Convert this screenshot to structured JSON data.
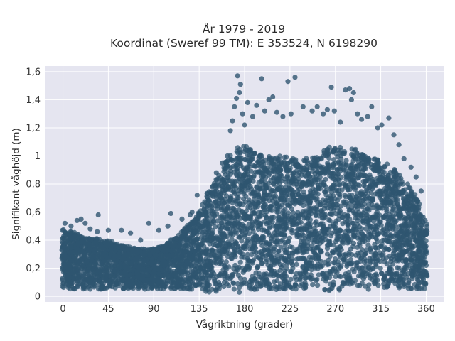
{
  "chart_data": {
    "type": "scatter",
    "title": "År 1979 - 2019",
    "subtitle": "Koordinat (Sweref 99 TM): E 353524, N 6198290",
    "xlabel": "Vågriktning (grader)",
    "ylabel": "Signifikant våghöjd (m)",
    "xlim": [
      -18,
      378
    ],
    "ylim": [
      -0.04,
      1.64
    ],
    "x_ticks": [
      0,
      45,
      90,
      135,
      180,
      225,
      270,
      315,
      360
    ],
    "x_tick_labels": [
      "0",
      "45",
      "90",
      "135",
      "180",
      "225",
      "270",
      "315",
      "360"
    ],
    "y_ticks": [
      0,
      0.2,
      0.4,
      0.6,
      0.8,
      1.0,
      1.2,
      1.4,
      1.6
    ],
    "y_tick_labels": [
      "0",
      "0,2",
      "0,4",
      "0,6",
      "0,8",
      "1",
      "1,2",
      "1,4",
      "1,6"
    ],
    "grid": true,
    "marker_color": "#2f5570",
    "plot_background": "#e5e5f0",
    "envelope": {
      "direction": [
        0,
        10,
        20,
        30,
        45,
        60,
        75,
        90,
        100,
        110,
        120,
        130,
        135,
        140,
        150,
        160,
        170,
        180,
        190,
        200,
        210,
        220,
        230,
        240,
        250,
        260,
        270,
        280,
        290,
        300,
        310,
        320,
        330,
        340,
        350,
        360
      ],
      "height_low": [
        0.05,
        0.05,
        0.05,
        0.05,
        0.05,
        0.05,
        0.05,
        0.05,
        0.05,
        0.05,
        0.05,
        0.05,
        0.04,
        0.03,
        0.02,
        0.02,
        0.02,
        0.03,
        0.04,
        0.04,
        0.04,
        0.05,
        0.05,
        0.05,
        0.05,
        0.04,
        0.04,
        0.05,
        0.05,
        0.05,
        0.05,
        0.05,
        0.05,
        0.05,
        0.05,
        0.05
      ],
      "height_high": [
        0.48,
        0.46,
        0.42,
        0.42,
        0.4,
        0.36,
        0.34,
        0.34,
        0.36,
        0.42,
        0.48,
        0.55,
        0.62,
        0.7,
        0.82,
        0.95,
        1.05,
        1.08,
        1.02,
        1.0,
        1.0,
        1.0,
        0.98,
        0.98,
        1.0,
        1.05,
        1.08,
        1.05,
        1.05,
        1.0,
        0.98,
        0.95,
        0.9,
        0.82,
        0.72,
        0.52
      ]
    },
    "outliers": [
      {
        "x": 2,
        "y": 0.52
      },
      {
        "x": 8,
        "y": 0.5
      },
      {
        "x": 14,
        "y": 0.54
      },
      {
        "x": 18,
        "y": 0.55
      },
      {
        "x": 22,
        "y": 0.52
      },
      {
        "x": 27,
        "y": 0.48
      },
      {
        "x": 34,
        "y": 0.46
      },
      {
        "x": 35,
        "y": 0.58
      },
      {
        "x": 45,
        "y": 0.47
      },
      {
        "x": 58,
        "y": 0.47
      },
      {
        "x": 67,
        "y": 0.45
      },
      {
        "x": 77,
        "y": 0.4
      },
      {
        "x": 85,
        "y": 0.52
      },
      {
        "x": 95,
        "y": 0.47
      },
      {
        "x": 104,
        "y": 0.5
      },
      {
        "x": 107,
        "y": 0.59
      },
      {
        "x": 118,
        "y": 0.55
      },
      {
        "x": 126,
        "y": 0.58
      },
      {
        "x": 128,
        "y": 0.6
      },
      {
        "x": 133,
        "y": 0.72
      },
      {
        "x": 148,
        "y": 0.78
      },
      {
        "x": 152,
        "y": 0.88
      },
      {
        "x": 158,
        "y": 0.95
      },
      {
        "x": 163,
        "y": 1.0
      },
      {
        "x": 166,
        "y": 1.18
      },
      {
        "x": 168,
        "y": 1.25
      },
      {
        "x": 170,
        "y": 1.35
      },
      {
        "x": 172,
        "y": 1.41
      },
      {
        "x": 173,
        "y": 1.57
      },
      {
        "x": 175,
        "y": 1.45
      },
      {
        "x": 176,
        "y": 1.51
      },
      {
        "x": 178,
        "y": 1.3
      },
      {
        "x": 180,
        "y": 1.22
      },
      {
        "x": 183,
        "y": 1.38
      },
      {
        "x": 188,
        "y": 1.28
      },
      {
        "x": 192,
        "y": 1.36
      },
      {
        "x": 197,
        "y": 1.55
      },
      {
        "x": 200,
        "y": 1.32
      },
      {
        "x": 204,
        "y": 1.4
      },
      {
        "x": 208,
        "y": 1.42
      },
      {
        "x": 212,
        "y": 1.31
      },
      {
        "x": 218,
        "y": 1.28
      },
      {
        "x": 223,
        "y": 1.53
      },
      {
        "x": 226,
        "y": 1.3
      },
      {
        "x": 230,
        "y": 1.56
      },
      {
        "x": 238,
        "y": 1.35
      },
      {
        "x": 247,
        "y": 1.32
      },
      {
        "x": 252,
        "y": 1.35
      },
      {
        "x": 258,
        "y": 1.3
      },
      {
        "x": 262,
        "y": 1.33
      },
      {
        "x": 266,
        "y": 1.49
      },
      {
        "x": 269,
        "y": 1.32
      },
      {
        "x": 275,
        "y": 1.24
      },
      {
        "x": 280,
        "y": 1.47
      },
      {
        "x": 284,
        "y": 1.48
      },
      {
        "x": 286,
        "y": 1.4
      },
      {
        "x": 288,
        "y": 1.45
      },
      {
        "x": 292,
        "y": 1.3
      },
      {
        "x": 296,
        "y": 1.26
      },
      {
        "x": 302,
        "y": 1.28
      },
      {
        "x": 306,
        "y": 1.35
      },
      {
        "x": 312,
        "y": 1.2
      },
      {
        "x": 316,
        "y": 1.22
      },
      {
        "x": 323,
        "y": 1.27
      },
      {
        "x": 328,
        "y": 1.15
      },
      {
        "x": 333,
        "y": 1.08
      },
      {
        "x": 338,
        "y": 0.98
      },
      {
        "x": 345,
        "y": 0.92
      },
      {
        "x": 350,
        "y": 0.85
      },
      {
        "x": 355,
        "y": 0.75
      },
      {
        "x": 359,
        "y": 0.54
      },
      {
        "x": 360,
        "y": 0.47
      }
    ]
  }
}
